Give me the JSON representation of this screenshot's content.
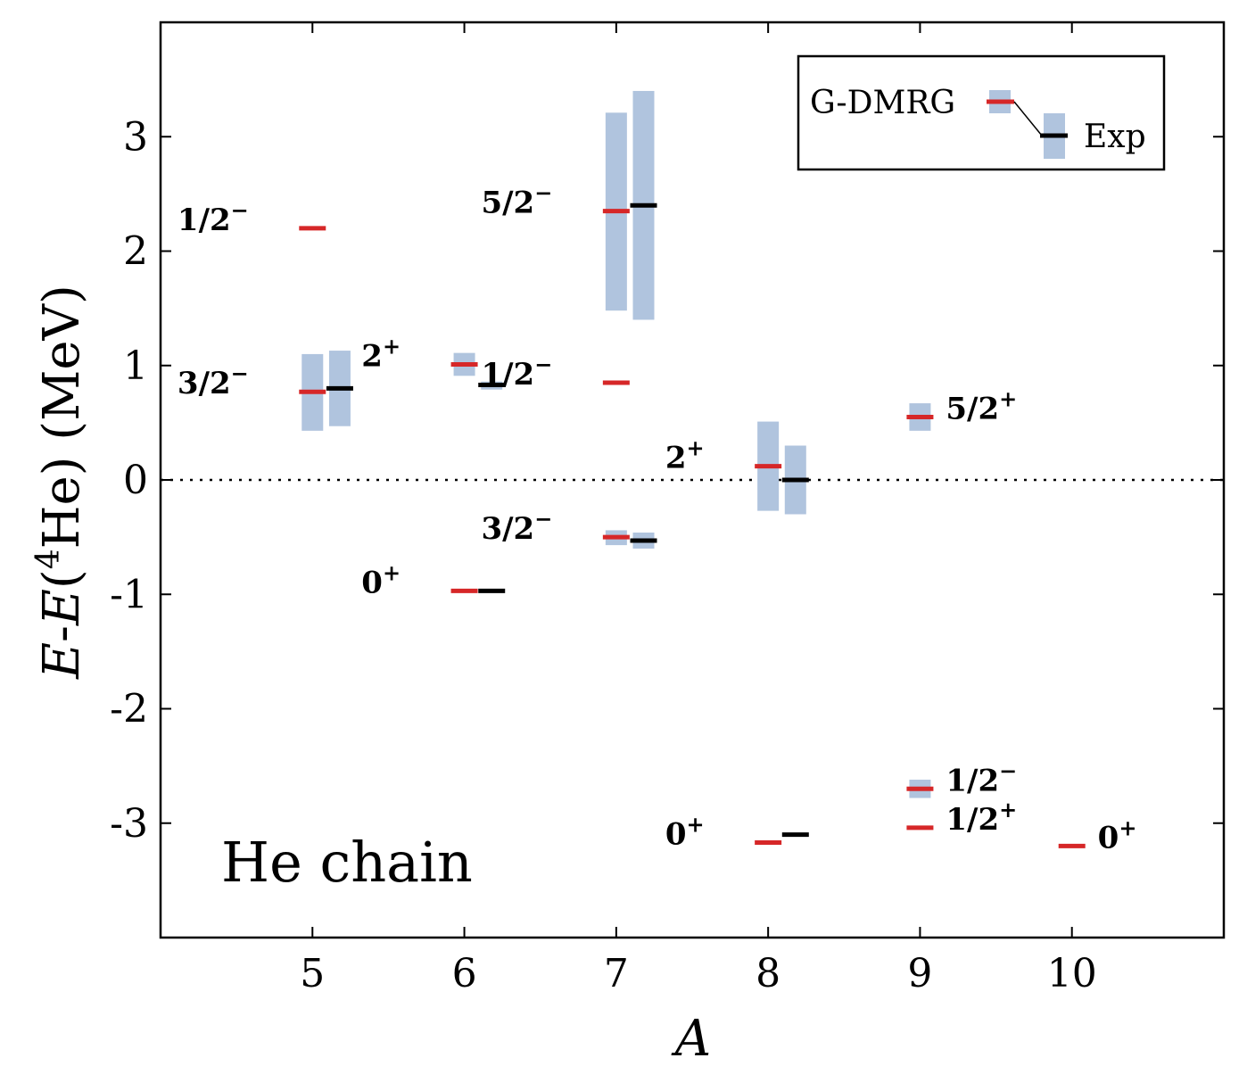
{
  "chart_data": {
    "type": "level-scheme",
    "title": "",
    "xlabel": "A",
    "ylabel_parts": [
      "E",
      "-",
      "E",
      "(",
      "4",
      "He) (MeV)"
    ],
    "xlim": [
      4,
      11
    ],
    "ylim": [
      -4,
      4
    ],
    "xticks": [
      5,
      6,
      7,
      8,
      9,
      10
    ],
    "yticks": [
      -3,
      -2,
      -1,
      0,
      1,
      2,
      3
    ],
    "ytick_labels": [
      "-3",
      "-2",
      "-1",
      "0",
      "1",
      "2",
      "3"
    ],
    "reference_line": 0,
    "panel_label": "He chain",
    "legend": {
      "gdmrg": "G-DMRG",
      "exp": "Exp",
      "placement": "top-right"
    },
    "colors": {
      "gdmrg": "#d62728",
      "exp": "#000000",
      "width_band": "#b0c4de"
    },
    "states": [
      {
        "A": 5,
        "jp": "3/2",
        "parity": "−",
        "gdmrg": 0.77,
        "gdmrg_width": [
          0.43,
          1.1
        ],
        "exp": 0.8,
        "exp_width": [
          0.47,
          1.13
        ],
        "label_side": "left"
      },
      {
        "A": 5,
        "jp": "1/2",
        "parity": "−",
        "gdmrg": 2.2,
        "label_side": "left"
      },
      {
        "A": 6,
        "jp": "0",
        "parity": "+",
        "gdmrg": -0.97,
        "exp": -0.97,
        "label_side": "left"
      },
      {
        "A": 6,
        "jp": "2",
        "parity": "+",
        "gdmrg": 1.01,
        "gdmrg_width": [
          0.91,
          1.11
        ],
        "exp": 0.83,
        "exp_width": [
          0.79,
          0.86
        ],
        "label_side": "left"
      },
      {
        "A": 7,
        "jp": "3/2",
        "parity": "−",
        "gdmrg": -0.5,
        "gdmrg_width": [
          -0.57,
          -0.44
        ],
        "exp": -0.53,
        "exp_width": [
          -0.6,
          -0.46
        ],
        "label_side": "left"
      },
      {
        "A": 7,
        "jp": "1/2",
        "parity": "−",
        "gdmrg": 0.85,
        "label_side": "left"
      },
      {
        "A": 7,
        "jp": "5/2",
        "parity": "−",
        "gdmrg": 2.35,
        "gdmrg_width": [
          1.48,
          3.21
        ],
        "exp": 2.4,
        "exp_width": [
          1.4,
          3.4
        ],
        "label_side": "left"
      },
      {
        "A": 8,
        "jp": "0",
        "parity": "+",
        "gdmrg": -3.17,
        "exp": -3.1,
        "label_side": "left"
      },
      {
        "A": 8,
        "jp": "2",
        "parity": "+",
        "gdmrg": 0.12,
        "gdmrg_width": [
          -0.27,
          0.51
        ],
        "exp": 0.0,
        "exp_width": [
          -0.3,
          0.3
        ],
        "label_side": "left"
      },
      {
        "A": 9,
        "jp": "1/2",
        "parity": "+",
        "gdmrg": -3.04,
        "label_side": "right"
      },
      {
        "A": 9,
        "jp": "1/2",
        "parity": "−",
        "gdmrg": -2.7,
        "gdmrg_width": [
          -2.78,
          -2.62
        ],
        "label_side": "right"
      },
      {
        "A": 9,
        "jp": "5/2",
        "parity": "+",
        "gdmrg": 0.55,
        "gdmrg_width": [
          0.43,
          0.67
        ],
        "label_side": "right"
      },
      {
        "A": 10,
        "jp": "0",
        "parity": "+",
        "gdmrg": -3.2,
        "label_side": "right"
      }
    ]
  }
}
